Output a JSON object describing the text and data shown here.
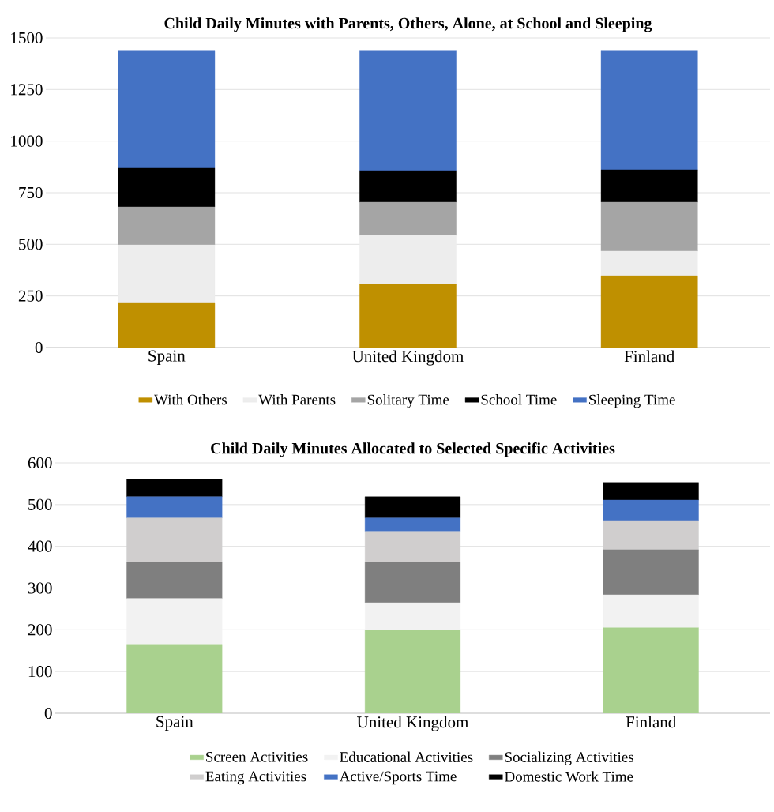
{
  "chart_data": [
    {
      "type": "bar",
      "title": "Child Daily Minutes with Parents, Others, Alone, at School and Sleeping",
      "stacked": true,
      "categories": [
        "Spain",
        "United Kingdom",
        "Finland"
      ],
      "series": [
        {
          "name": "With Others",
          "color": "#bf9000",
          "values": [
            218,
            306,
            348
          ]
        },
        {
          "name": "With Parents",
          "color": "#ededed",
          "values": [
            279,
            237,
            119
          ]
        },
        {
          "name": "Solitary Time",
          "color": "#a5a5a5",
          "values": [
            184,
            161,
            237
          ]
        },
        {
          "name": "School Time",
          "color": "#000000",
          "values": [
            188,
            153,
            157
          ]
        },
        {
          "name": "Sleeping Time",
          "color": "#4472c4",
          "values": [
            571,
            583,
            579
          ]
        }
      ],
      "ylim": [
        0,
        1500
      ],
      "yticks": [
        0,
        250,
        500,
        750,
        1000,
        1250,
        1500
      ],
      "grid": "y",
      "legend": "bottom"
    },
    {
      "type": "bar",
      "title": "Child Daily Minutes Allocated to Selected Specific Activities",
      "stacked": true,
      "categories": [
        "Spain",
        "United Kingdom",
        "Finland"
      ],
      "series": [
        {
          "name": "Screen Activities",
          "color": "#a9d18e",
          "values": [
            165,
            199,
            205
          ]
        },
        {
          "name": "Educational Activities",
          "color": "#f2f2f2",
          "values": [
            110,
            66,
            79
          ]
        },
        {
          "name": "Socializing Activities",
          "color": "#7f7f7f",
          "values": [
            87,
            97,
            108
          ]
        },
        {
          "name": "Eating Activities",
          "color": "#d0cece",
          "values": [
            106,
            74,
            70
          ]
        },
        {
          "name": "Active/Sports Time",
          "color": "#4472c4",
          "values": [
            51,
            32,
            49
          ]
        },
        {
          "name": "Domestic Work Time",
          "color": "#000000",
          "values": [
            42,
            51,
            42
          ]
        }
      ],
      "ylim": [
        0,
        600
      ],
      "yticks": [
        0,
        100,
        200,
        300,
        400,
        500,
        600
      ],
      "grid": "y",
      "legend": "bottom"
    }
  ]
}
